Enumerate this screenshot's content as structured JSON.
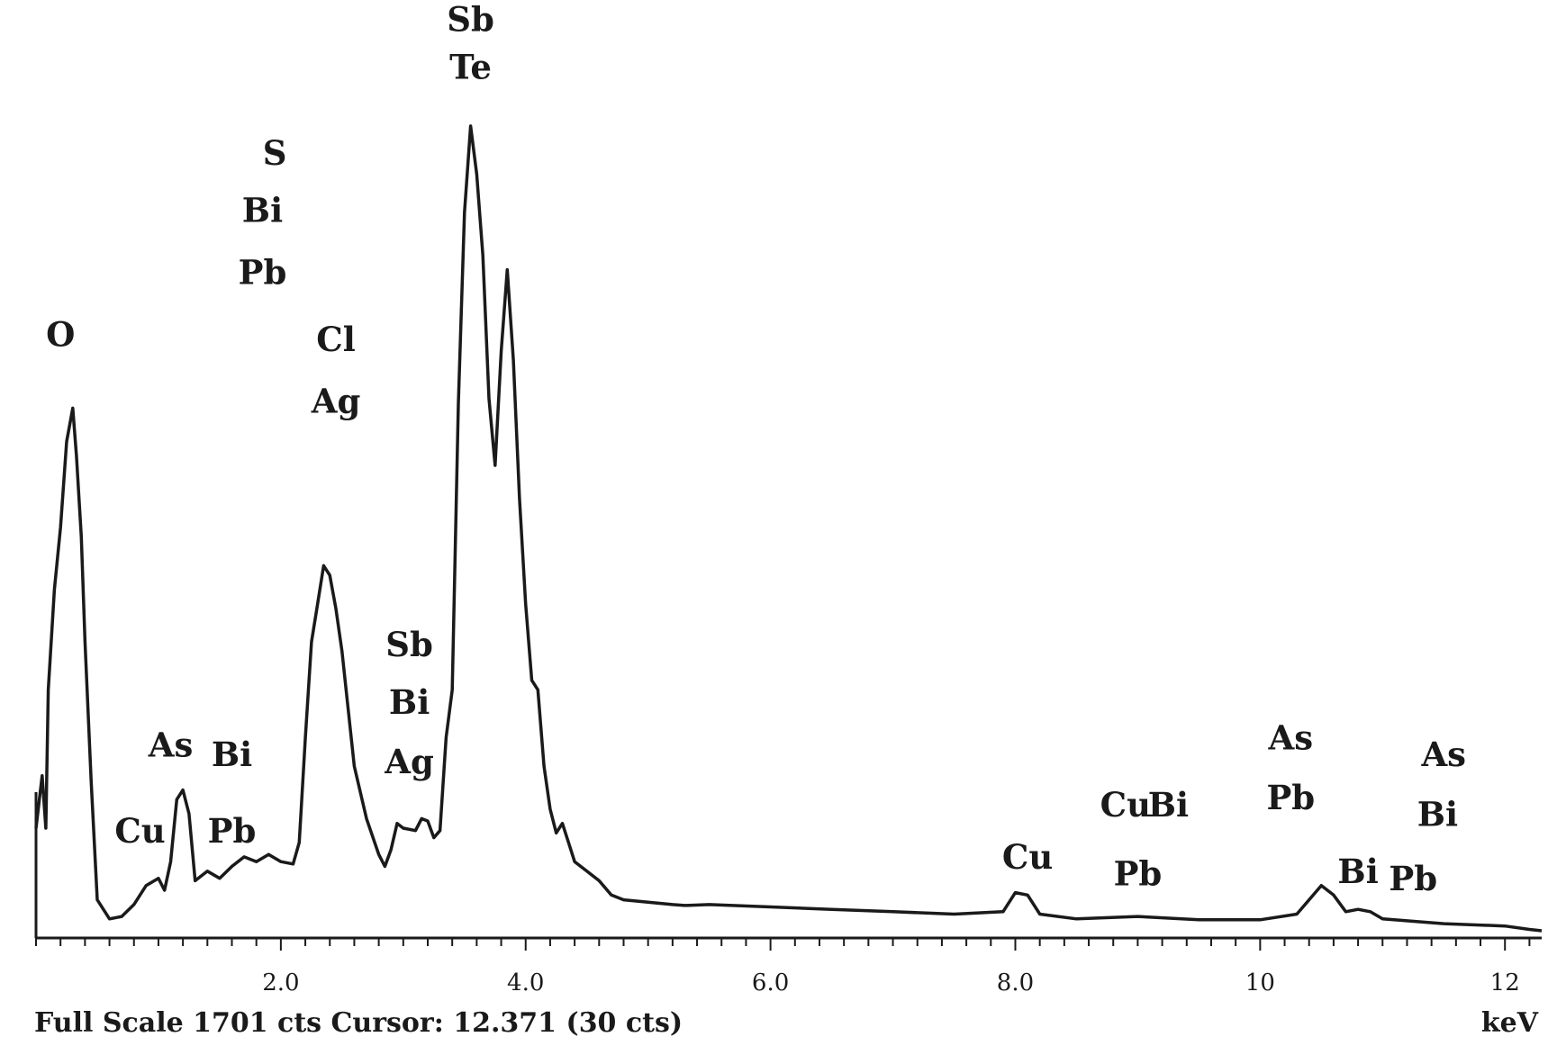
{
  "chart_data": {
    "type": "line",
    "title": "",
    "xlabel": "",
    "ylabel": "",
    "x_unit_label": "keV",
    "footer": "Full Scale 1701 cts Cursor: 12.371 (30 cts)",
    "xlim": [
      0,
      12.3
    ],
    "ylim": [
      0,
      1701
    ],
    "x_ticks": [
      {
        "value": 2.0,
        "label": "2.0"
      },
      {
        "value": 4.0,
        "label": "4.0"
      },
      {
        "value": 6.0,
        "label": "6.0"
      },
      {
        "value": 8.0,
        "label": "8.0"
      },
      {
        "value": 10,
        "label": "10"
      },
      {
        "value": 12,
        "label": "12"
      }
    ],
    "series": [
      {
        "values": [
          [
            0.0,
            230
          ],
          [
            0.05,
            340
          ],
          [
            0.08,
            230
          ],
          [
            0.1,
            520
          ],
          [
            0.15,
            730
          ],
          [
            0.2,
            860
          ],
          [
            0.25,
            1040
          ],
          [
            0.3,
            1110
          ],
          [
            0.33,
            1010
          ],
          [
            0.37,
            840
          ],
          [
            0.4,
            620
          ],
          [
            0.45,
            330
          ],
          [
            0.5,
            80
          ],
          [
            0.6,
            40
          ],
          [
            0.7,
            45
          ],
          [
            0.8,
            70
          ],
          [
            0.9,
            110
          ],
          [
            1.0,
            125
          ],
          [
            1.05,
            100
          ],
          [
            1.1,
            160
          ],
          [
            1.15,
            290
          ],
          [
            1.2,
            310
          ],
          [
            1.25,
            260
          ],
          [
            1.3,
            120
          ],
          [
            1.4,
            140
          ],
          [
            1.5,
            125
          ],
          [
            1.6,
            150
          ],
          [
            1.7,
            170
          ],
          [
            1.8,
            160
          ],
          [
            1.9,
            175
          ],
          [
            2.0,
            160
          ],
          [
            2.1,
            155
          ],
          [
            2.15,
            200
          ],
          [
            2.2,
            420
          ],
          [
            2.25,
            620
          ],
          [
            2.3,
            700
          ],
          [
            2.35,
            780
          ],
          [
            2.4,
            760
          ],
          [
            2.45,
            690
          ],
          [
            2.5,
            600
          ],
          [
            2.55,
            480
          ],
          [
            2.6,
            360
          ],
          [
            2.7,
            250
          ],
          [
            2.8,
            175
          ],
          [
            2.85,
            150
          ],
          [
            2.9,
            185
          ],
          [
            2.95,
            240
          ],
          [
            3.0,
            230
          ],
          [
            3.1,
            225
          ],
          [
            3.15,
            250
          ],
          [
            3.2,
            245
          ],
          [
            3.25,
            210
          ],
          [
            3.3,
            225
          ],
          [
            3.35,
            420
          ],
          [
            3.4,
            520
          ],
          [
            3.45,
            1120
          ],
          [
            3.5,
            1520
          ],
          [
            3.55,
            1701
          ],
          [
            3.6,
            1600
          ],
          [
            3.65,
            1430
          ],
          [
            3.7,
            1130
          ],
          [
            3.75,
            990
          ],
          [
            3.8,
            1230
          ],
          [
            3.85,
            1400
          ],
          [
            3.9,
            1210
          ],
          [
            3.95,
            920
          ],
          [
            4.0,
            700
          ],
          [
            4.05,
            540
          ],
          [
            4.1,
            520
          ],
          [
            4.15,
            360
          ],
          [
            4.2,
            270
          ],
          [
            4.25,
            220
          ],
          [
            4.3,
            240
          ],
          [
            4.35,
            200
          ],
          [
            4.4,
            160
          ],
          [
            4.5,
            140
          ],
          [
            4.6,
            120
          ],
          [
            4.7,
            90
          ],
          [
            4.8,
            80
          ],
          [
            5.0,
            75
          ],
          [
            5.2,
            70
          ],
          [
            5.3,
            68
          ],
          [
            5.5,
            70
          ],
          [
            6.0,
            65
          ],
          [
            6.5,
            60
          ],
          [
            7.0,
            55
          ],
          [
            7.5,
            50
          ],
          [
            7.9,
            55
          ],
          [
            8.0,
            95
          ],
          [
            8.1,
            90
          ],
          [
            8.2,
            50
          ],
          [
            8.5,
            40
          ],
          [
            9.0,
            45
          ],
          [
            9.5,
            38
          ],
          [
            10.0,
            38
          ],
          [
            10.3,
            50
          ],
          [
            10.4,
            80
          ],
          [
            10.5,
            110
          ],
          [
            10.6,
            90
          ],
          [
            10.7,
            55
          ],
          [
            10.8,
            60
          ],
          [
            10.9,
            55
          ],
          [
            11.0,
            40
          ],
          [
            11.5,
            30
          ],
          [
            12.0,
            25
          ],
          [
            12.2,
            18
          ],
          [
            12.3,
            15
          ]
        ]
      }
    ],
    "annotations": [
      {
        "text": "O",
        "x": 0.2,
        "y": 1240
      },
      {
        "text": "Cu",
        "x": 0.85,
        "y": 200
      },
      {
        "text": "As",
        "x": 1.1,
        "y": 380
      },
      {
        "text": "Bi",
        "x": 1.6,
        "y": 360
      },
      {
        "text": "Pb",
        "x": 1.6,
        "y": 200
      },
      {
        "text": "S",
        "x": 1.95,
        "y": 1620
      },
      {
        "text": "Bi",
        "x": 1.85,
        "y": 1500
      },
      {
        "text": "Pb",
        "x": 1.85,
        "y": 1370
      },
      {
        "text": "Cl",
        "x": 2.45,
        "y": 1230
      },
      {
        "text": "Ag",
        "x": 2.45,
        "y": 1100
      },
      {
        "text": "Sb",
        "x": 3.05,
        "y": 590
      },
      {
        "text": "Bi",
        "x": 3.05,
        "y": 470
      },
      {
        "text": "Ag",
        "x": 3.05,
        "y": 345
      },
      {
        "text": "Sb",
        "x": 3.55,
        "y": 1900
      },
      {
        "text": "Te",
        "x": 3.55,
        "y": 1800
      },
      {
        "text": "Cu",
        "x": 8.1,
        "y": 145
      },
      {
        "text": "Cu",
        "x": 8.9,
        "y": 255
      },
      {
        "text": "Bi",
        "x": 9.25,
        "y": 255
      },
      {
        "text": "Pb",
        "x": 9.0,
        "y": 110
      },
      {
        "text": "As",
        "x": 10.25,
        "y": 395
      },
      {
        "text": "Pb",
        "x": 10.25,
        "y": 270
      },
      {
        "text": "Bi",
        "x": 10.8,
        "y": 115
      },
      {
        "text": "As",
        "x": 11.5,
        "y": 360
      },
      {
        "text": "Bi",
        "x": 11.45,
        "y": 235
      },
      {
        "text": "Pb",
        "x": 11.25,
        "y": 100
      }
    ],
    "grid": false,
    "legend": "none",
    "line_color": "#1a1a1a"
  }
}
